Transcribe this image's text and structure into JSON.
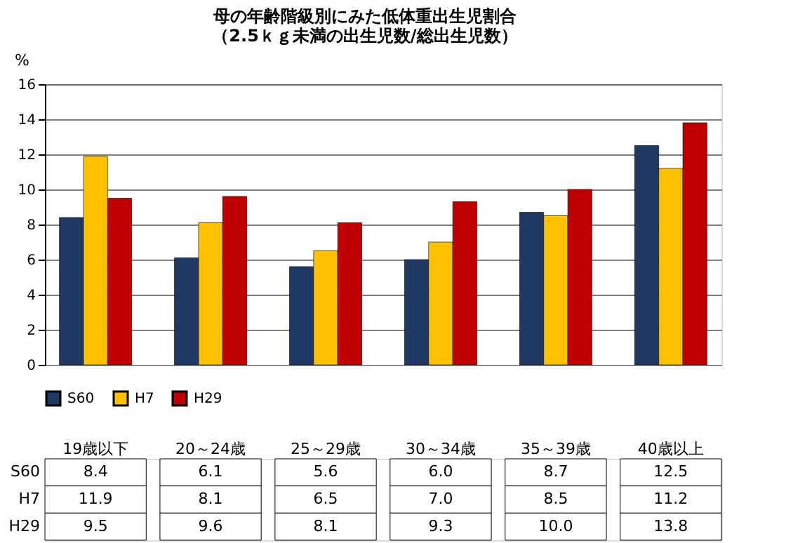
{
  "chart_data": {
    "type": "bar",
    "title": [
      "母の年齢階級別にみた低体重出生児割合",
      "（2.5ｋｇ未満の出生児数/総出生児数）"
    ],
    "ylabel": "%",
    "categories": [
      "19歳以下",
      "20～24歳",
      "25～29歳",
      "30～34歳",
      "35～39歳",
      "40歳以上"
    ],
    "series": [
      {
        "name": "S60",
        "color": "#203864",
        "values": [
          8.4,
          6.1,
          5.6,
          6.0,
          8.7,
          12.5
        ],
        "value_labels": [
          "8.4",
          "6.1",
          "5.6",
          "6.0",
          "8.7",
          "12.5"
        ]
      },
      {
        "name": "H7",
        "color": "#ffc000",
        "values": [
          11.9,
          8.1,
          6.5,
          7.0,
          8.5,
          11.2
        ],
        "value_labels": [
          "11.9",
          "8.1",
          "6.5",
          "7.0",
          "8.5",
          "11.2"
        ]
      },
      {
        "name": "H29",
        "color": "#c00000",
        "values": [
          9.5,
          9.6,
          8.1,
          9.3,
          10.0,
          13.8
        ],
        "value_labels": [
          "9.5",
          "9.6",
          "8.1",
          "9.3",
          "10.0",
          "13.8"
        ]
      }
    ],
    "ylim": [
      0,
      16
    ],
    "yticks": [
      0,
      2,
      4,
      6,
      8,
      10,
      12,
      14,
      16
    ],
    "grid": "y",
    "legend": "bottom"
  }
}
